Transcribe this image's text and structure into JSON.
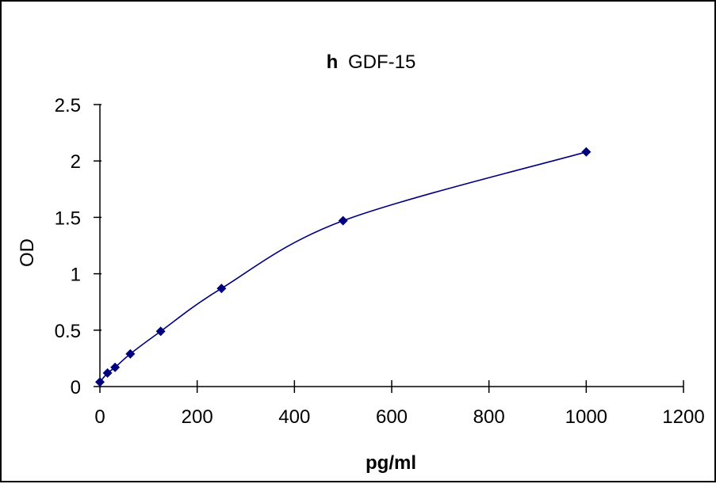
{
  "chart_data": {
    "type": "line",
    "title_prefix": "h",
    "title": "GDF-15",
    "xlabel": "pg/ml",
    "ylabel": "OD",
    "xlim": [
      0,
      1200
    ],
    "ylim": [
      0,
      2.5
    ],
    "x_ticks": [
      "0",
      "200",
      "400",
      "600",
      "800",
      "1000",
      "1200"
    ],
    "y_ticks": [
      "0",
      "0.5",
      "1",
      "1.5",
      "2",
      "2.5"
    ],
    "grid": false,
    "legend": "none",
    "series": [
      {
        "x": [
          0,
          15.6,
          31.25,
          62.5,
          125,
          250,
          500,
          1000
        ],
        "y": [
          0.04,
          0.12,
          0.17,
          0.29,
          0.49,
          0.87,
          1.47,
          2.08
        ],
        "color": "#00007f",
        "marker": "diamond",
        "smoothed": true
      }
    ]
  }
}
